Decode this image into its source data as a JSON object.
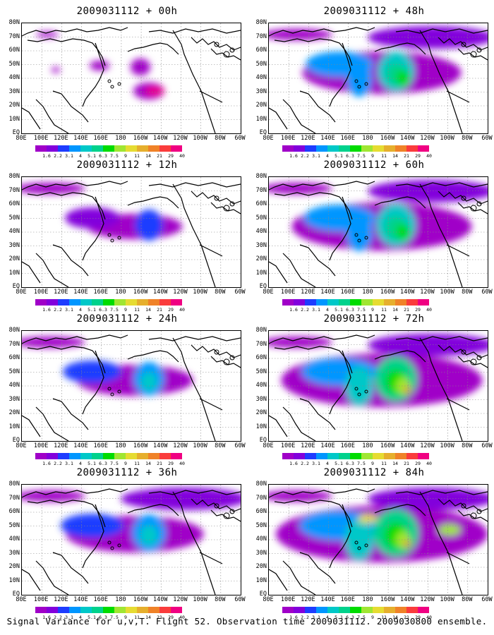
{
  "footer": "Signal Variance for u,v,T. Flight 52. Observation time 2009031112. 2009030800 ensemble.",
  "lat_labels": [
    "80N",
    "70N",
    "60N",
    "50N",
    "40N",
    "30N",
    "20N",
    "10N",
    "EQ"
  ],
  "lon_labels": [
    "80E",
    "100E",
    "120E",
    "140E",
    "160E",
    "180",
    "160W",
    "140W",
    "120W",
    "100W",
    "80W",
    "60W"
  ],
  "colorbar": {
    "ticks": [
      "1.6",
      "2.2",
      "3.1",
      "4",
      "5.1",
      "6.3",
      "7.5",
      "9",
      "11",
      "14",
      "21",
      "29",
      "40"
    ],
    "colors": [
      "#a000c8",
      "#8200dc",
      "#1e3cff",
      "#0096ff",
      "#00c8c8",
      "#00d28c",
      "#00dc00",
      "#a0e632",
      "#e6dc32",
      "#e6af2d",
      "#f08228",
      "#fa3c3c",
      "#f00082"
    ]
  },
  "panels": [
    {
      "title": "2009031112 + 00h",
      "level": 0
    },
    {
      "title": "2009031112 + 48h",
      "level": 4
    },
    {
      "title": "2009031112 + 12h",
      "level": 1
    },
    {
      "title": "2009031112 + 60h",
      "level": 5
    },
    {
      "title": "2009031112 + 24h",
      "level": 2
    },
    {
      "title": "2009031112 + 72h",
      "level": 6
    },
    {
      "title": "2009031112 + 36h",
      "level": 3
    },
    {
      "title": "2009031112 + 84h",
      "level": 7
    }
  ]
}
